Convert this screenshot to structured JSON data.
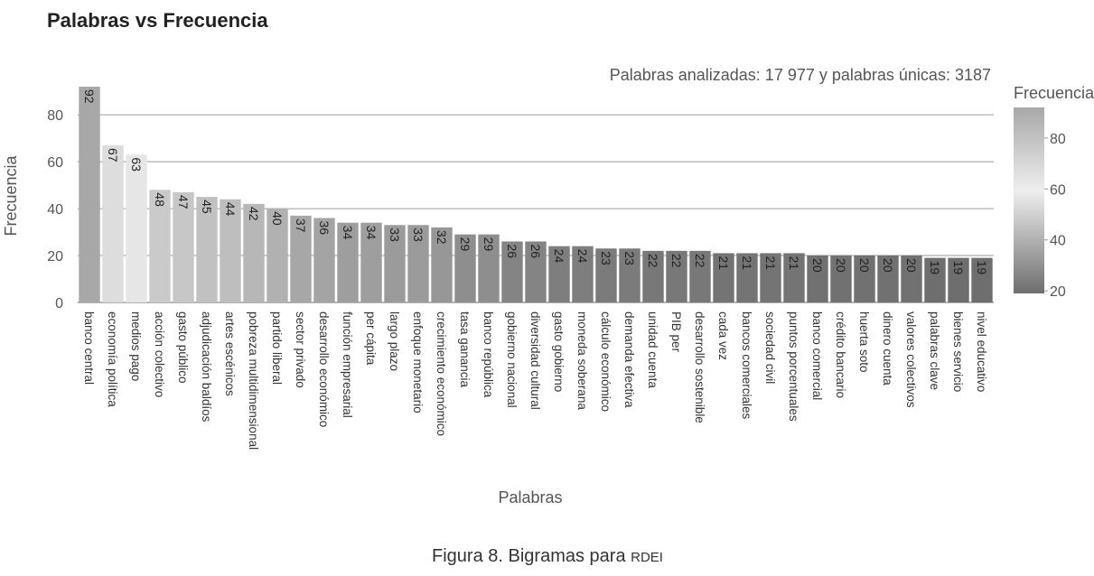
{
  "chart_data": {
    "type": "bar",
    "title": "Palabras vs Frecuencia",
    "subtitle": "Palabras analizadas: 17 977 y palabras únicas: 3187",
    "xlabel": "Palabras",
    "ylabel": "Frecuencia",
    "ylim": [
      0,
      92
    ],
    "yticks": [
      0,
      20,
      40,
      60,
      80
    ],
    "grid": true,
    "legend": {
      "title": "Frecuencia",
      "placement": "right",
      "ticks": [
        20,
        40,
        60,
        80
      ],
      "range": [
        19,
        92
      ]
    },
    "colors": {
      "low": "#6e6e6e",
      "mid": "#eeeeee",
      "high": "#a8a8a8"
    },
    "categories": [
      "banco central",
      "economía política",
      "medios pago",
      "acción colectivo",
      "gasto público",
      "adjudicación baldíos",
      "artes escénicos",
      "pobreza multidimensional",
      "partido liberal",
      "sector privado",
      "desarrollo económico",
      "función empresarial",
      "per cápita",
      "largo plazo",
      "enfoque monetario",
      "crecimiento económico",
      "tasa ganancia",
      "banco república",
      "gobierno nacional",
      "diversidad cultural",
      "gasto gobierno",
      "moneda soberana",
      "cálculo económico",
      "demanda efectiva",
      "unidad cuenta",
      "PIB per",
      "desarrollo sostenible",
      "cada vez",
      "bancos comerciales",
      "sociedad civil",
      "puntos porcentuales",
      "banco comercial",
      "crédito bancario",
      "huerta soto",
      "dinero cuenta",
      "valores colectivos",
      "palabras clave",
      "bienes servicio",
      "nivel educativo"
    ],
    "values": [
      92,
      67,
      63,
      48,
      47,
      45,
      44,
      42,
      40,
      37,
      36,
      34,
      34,
      33,
      33,
      32,
      29,
      29,
      26,
      26,
      24,
      24,
      23,
      23,
      22,
      22,
      22,
      21,
      21,
      21,
      21,
      20,
      20,
      20,
      20,
      20,
      19,
      19,
      19
    ]
  },
  "caption": {
    "prefix": "Figura 8.",
    "text": "Bigramas para",
    "suffix": "RDEI"
  }
}
